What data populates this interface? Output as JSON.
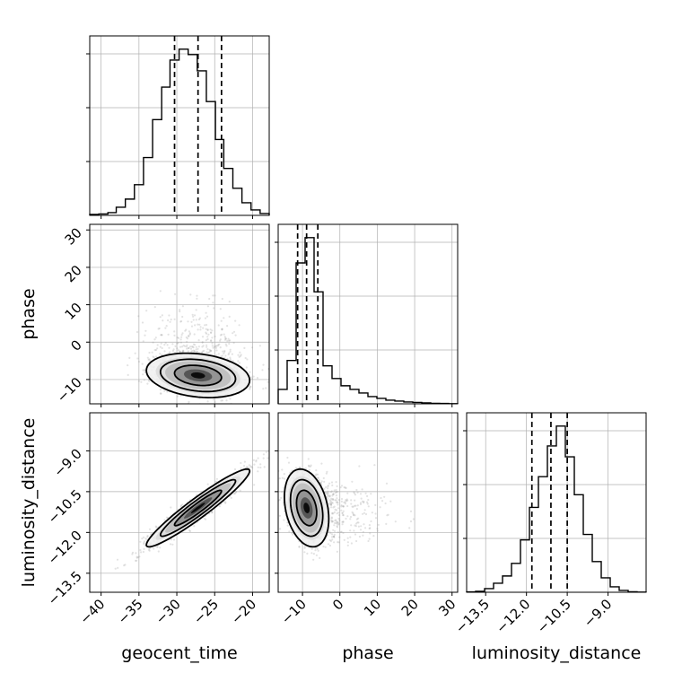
{
  "chart_data": {
    "type": "corner",
    "parameters": [
      "geocent_time",
      "phase",
      "luminosity_distance"
    ],
    "ranges": {
      "geocent_time": [
        -41.5,
        -17.8
      ],
      "phase": [
        -16.5,
        31.5
      ],
      "luminosity_distance": [
        -14.2,
        -7.6
      ]
    },
    "ticks": {
      "geocent_time": [
        -40,
        -35,
        -30,
        -25,
        -20
      ],
      "phase": [
        -10,
        0,
        10,
        20,
        30
      ],
      "luminosity_distance": [
        -13.5,
        -12.0,
        -10.5,
        -9.0
      ]
    },
    "tick_labels": {
      "geocent_time": [
        "−40",
        "−35",
        "−30",
        "−25",
        "−20"
      ],
      "phase": [
        "−10",
        "0",
        "10",
        "20",
        "30"
      ],
      "luminosity_distance": [
        "−13.5",
        "−12.0",
        "−10.5",
        "−9.0"
      ]
    },
    "quantiles": {
      "geocent_time": [
        -30.3,
        -27.2,
        -24.1
      ],
      "phase": [
        -11.3,
        -8.9,
        -5.9
      ],
      "luminosity_distance": [
        -11.8,
        -11.1,
        -10.5
      ]
    },
    "histograms": {
      "geocent_time": {
        "edges": [
          -41.5,
          -40.3,
          -39.1,
          -38.0,
          -36.8,
          -35.6,
          -34.4,
          -33.2,
          -32.0,
          -30.9,
          -29.7,
          -28.5,
          -27.3,
          -26.1,
          -24.9,
          -23.8,
          -22.6,
          -21.4,
          -20.2,
          -19.0,
          -17.8
        ],
        "counts": [
          0.5,
          0.8,
          1.5,
          4.5,
          9.0,
          17.0,
          32.0,
          53.0,
          71.0,
          86.0,
          92.0,
          89.0,
          80.0,
          63.0,
          42.0,
          26.0,
          15.0,
          7.0,
          3.0,
          1.0
        ]
      },
      "phase": {
        "edges": [
          -16.5,
          -14.1,
          -11.7,
          -9.3,
          -6.9,
          -4.5,
          -2.1,
          0.3,
          2.7,
          5.1,
          7.5,
          9.9,
          12.3,
          14.7,
          17.1,
          19.5,
          21.9,
          24.3,
          26.7,
          29.1,
          31.5
        ],
        "counts": [
          8.0,
          24.0,
          78.0,
          92.0,
          62.0,
          21.0,
          14.0,
          10.0,
          8.0,
          6.0,
          4.0,
          3.0,
          2.0,
          1.5,
          1.0,
          0.8,
          0.5,
          0.3,
          0.2,
          0.1
        ]
      },
      "luminosity_distance": {
        "edges": [
          -14.2,
          -13.87,
          -13.54,
          -13.21,
          -12.88,
          -12.55,
          -12.22,
          -11.89,
          -11.56,
          -11.23,
          -10.9,
          -10.57,
          -10.24,
          -9.91,
          -9.58,
          -9.25,
          -8.92,
          -8.59,
          -8.26,
          -7.93,
          -7.6
        ],
        "counts": [
          0.2,
          0.5,
          2.0,
          5.0,
          9.0,
          16.0,
          29.0,
          47.0,
          64.0,
          81.0,
          92.0,
          75.0,
          54.0,
          32.0,
          17.0,
          8.0,
          3.0,
          1.0,
          0.3,
          0.1
        ]
      }
    },
    "correlations": {
      "geocent_time|phase": -0.22,
      "geocent_time|luminosity_distance": 0.95,
      "phase|luminosity_distance": -0.28
    },
    "contour_levels_sigma": [
      1.0,
      1.6,
      2.2
    ],
    "xlabel": [
      "geocent_time",
      "phase",
      "luminosity_distance"
    ],
    "ylabel": [
      "phase",
      "luminosity_distance"
    ],
    "grid": true,
    "colors": {
      "histogram": "#000000",
      "scatter": "#9a9a9a",
      "density_dark": "#000000",
      "density_light": "#c8c8c8",
      "grid": "#b0b0b0",
      "frame": "#000000"
    }
  }
}
